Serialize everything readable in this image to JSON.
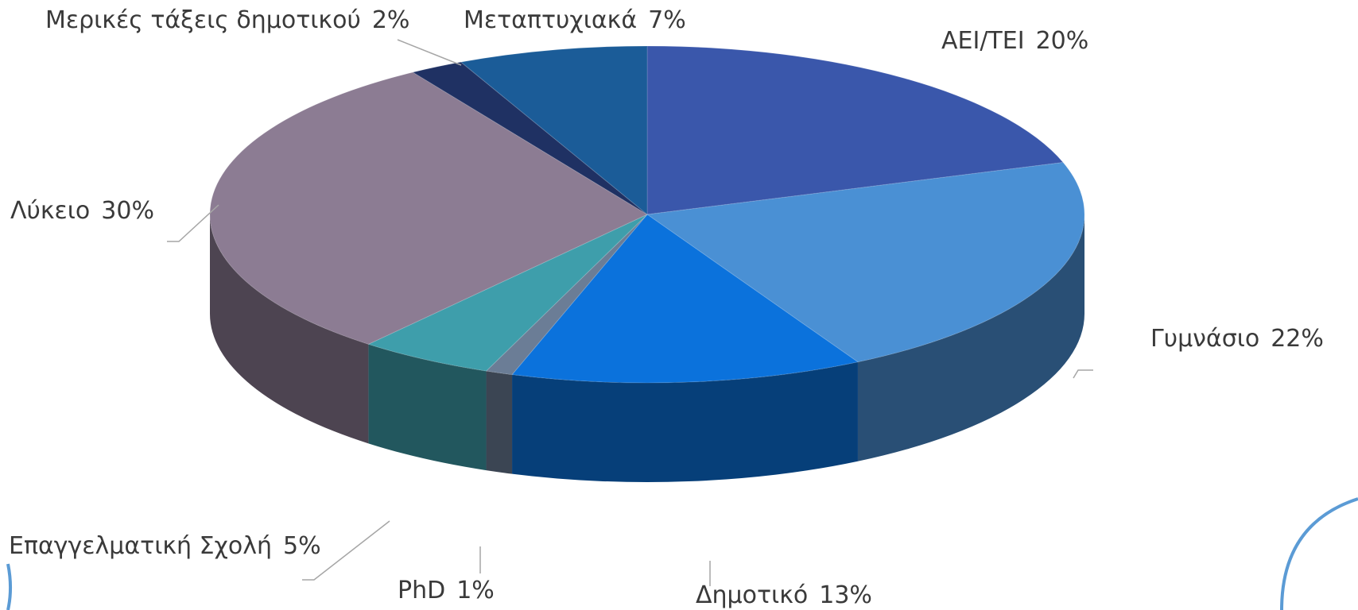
{
  "chart_data": {
    "type": "pie3d",
    "categories": [
      "AEI/TEI",
      "Γυμνάσιο",
      "Δημοτικό",
      "PhD",
      "Επαγγελματική Σχολή",
      "Λύκειο",
      "Μερικές τάξεις δημοτικού",
      "Μεταπτυχιακά"
    ],
    "values": [
      20,
      22,
      13,
      1,
      5,
      30,
      2,
      7
    ],
    "value_labels": [
      "20%",
      "22%",
      "13%",
      "1%",
      "5%",
      "30%",
      "2%",
      "7%"
    ],
    "colors": [
      "#3a57ab",
      "#4a90d4",
      "#0b72dc",
      "#6b7d96",
      "#3e9eab",
      "#8c7c93",
      "#1f3163",
      "#1b5c98"
    ]
  }
}
